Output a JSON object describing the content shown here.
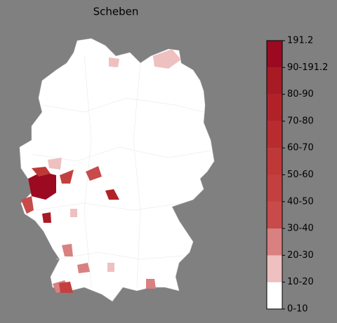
{
  "header": {
    "title": "Scheben"
  },
  "colorbar": {
    "labels": [
      "191.2",
      "90-191.2",
      "80-90",
      "70-80",
      "60-70",
      "50-60",
      "40-50",
      "30-40",
      "20-30",
      "10-20",
      "0-10"
    ],
    "colors": [
      "#9b0a20",
      "#a81a24",
      "#b12228",
      "#b82c30",
      "#bf3838",
      "#c44040",
      "#c84a4a",
      "#d98080",
      "#efc0c0",
      "#ffffff"
    ]
  }
}
